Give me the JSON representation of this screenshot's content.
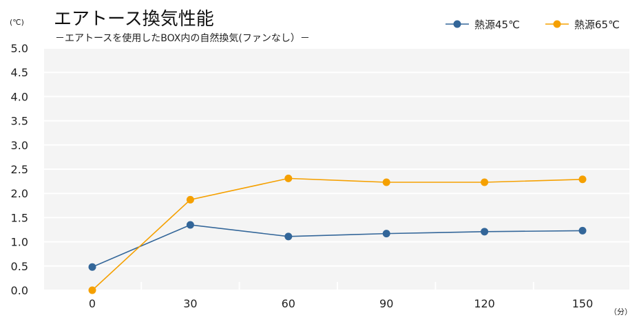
{
  "chart_data": {
    "type": "line",
    "title": "エアトース換気性能",
    "subtitle": "－エアトースを使用したBOX内の自然換気(ファンなし）－",
    "ylabel": "(℃)",
    "xlabel": "（分）",
    "x": [
      0,
      30,
      60,
      90,
      120,
      150
    ],
    "ylim": [
      0,
      5
    ],
    "yticks": [
      "0.0",
      "0.5",
      "1.0",
      "1.5",
      "2.0",
      "2.5",
      "3.0",
      "3.5",
      "4.0",
      "4.5",
      "5.0"
    ],
    "grid": true,
    "legend_position": "top-right",
    "series": [
      {
        "name": "熱源45℃",
        "color": "#336699",
        "values": [
          0.48,
          1.35,
          1.11,
          1.17,
          1.21,
          1.23
        ]
      },
      {
        "name": "熱源65℃",
        "color": "#F5A000",
        "values": [
          0.0,
          1.87,
          2.31,
          2.23,
          2.23,
          2.29
        ]
      }
    ]
  }
}
